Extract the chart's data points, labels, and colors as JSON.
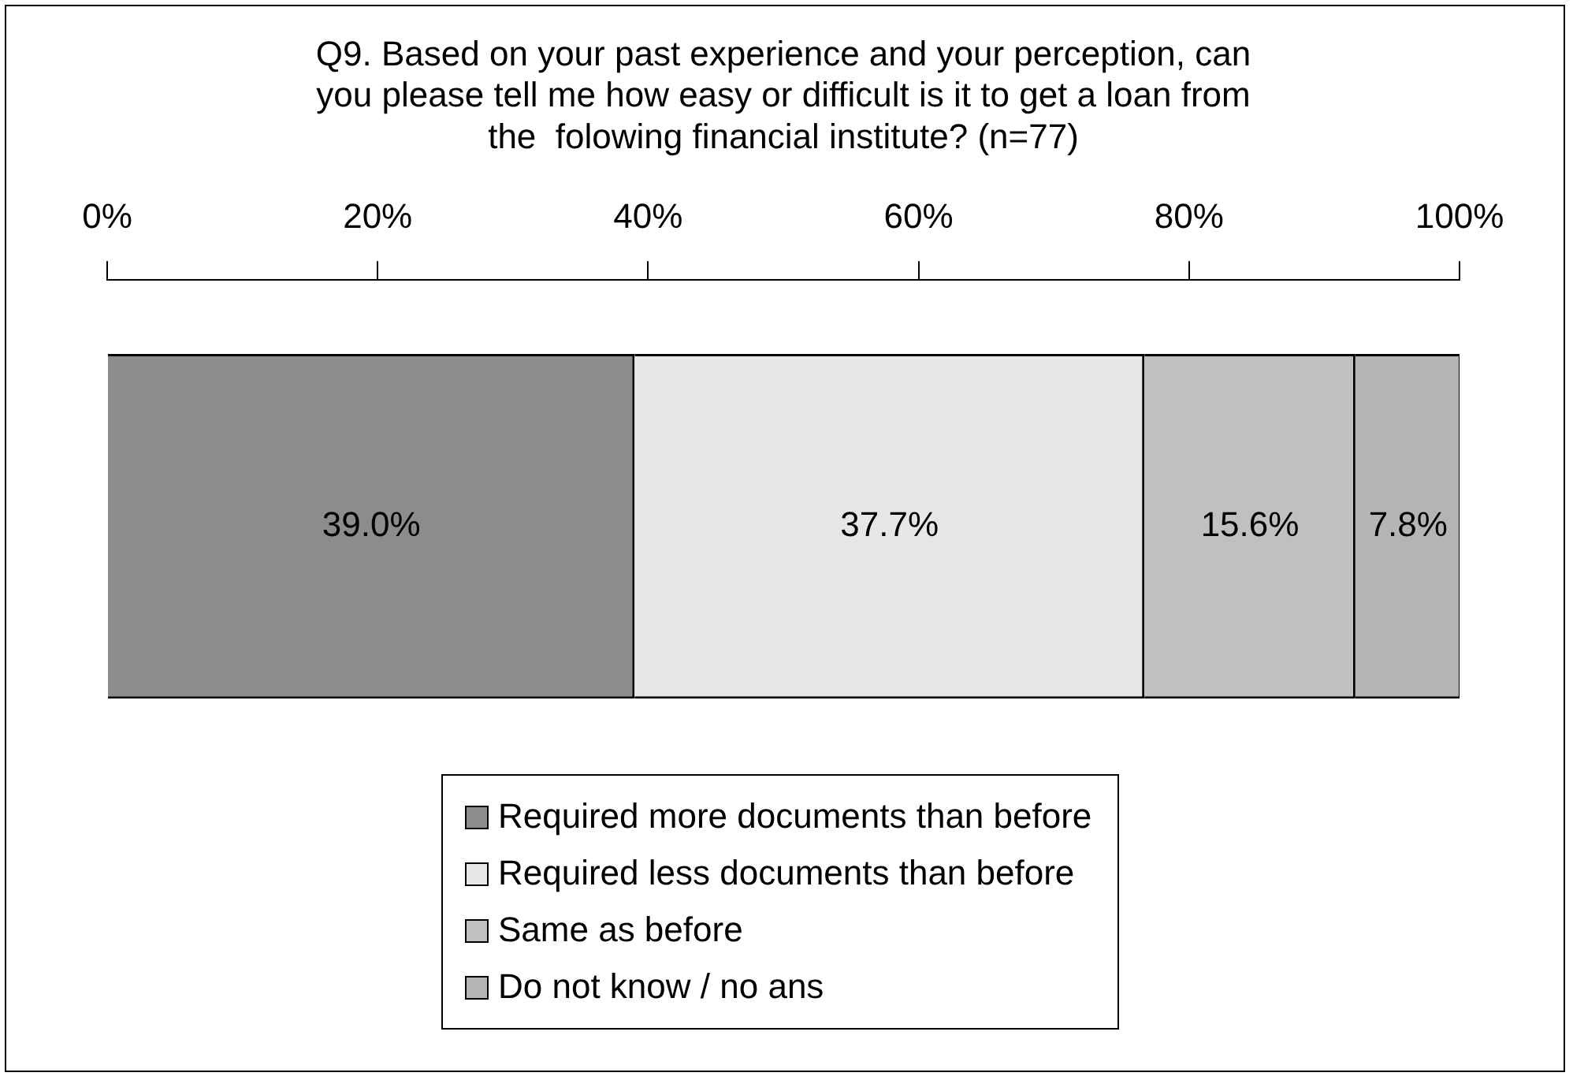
{
  "chart_data": {
    "type": "bar",
    "orientation": "horizontal",
    "stacked": true,
    "title": "Q9. Based on your past experience and your perception, can\nyou please tell me how easy or difficult is it to get a loan from\nthe  folowing financial institute? (n=77)",
    "categories": [
      null
    ],
    "series": [
      {
        "name": "Required more documents than before",
        "color": "#8c8c8c",
        "values": [
          39.0
        ],
        "value_labels": [
          "39.0%"
        ]
      },
      {
        "name": "Required less documents than before",
        "color": "#e6e6e6",
        "values": [
          37.7
        ],
        "value_labels": [
          "37.7%"
        ]
      },
      {
        "name": "Same as before",
        "color": "#c0c0c0",
        "values": [
          15.6
        ],
        "value_labels": [
          "15.6%"
        ]
      },
      {
        "name": "Do not know / no ans",
        "color": "#b4b4b4",
        "values": [
          7.8
        ],
        "value_labels": [
          "7.8%"
        ]
      }
    ],
    "xlim": [
      0,
      100
    ],
    "xticks": [
      {
        "value": 0,
        "label": "0%"
      },
      {
        "value": 20,
        "label": "20%"
      },
      {
        "value": 40,
        "label": "40%"
      },
      {
        "value": 60,
        "label": "60%"
      },
      {
        "value": 80,
        "label": "80%"
      },
      {
        "value": 100,
        "label": "100%"
      }
    ],
    "grid": false,
    "legend": "bottom",
    "tick_labels": "x"
  }
}
